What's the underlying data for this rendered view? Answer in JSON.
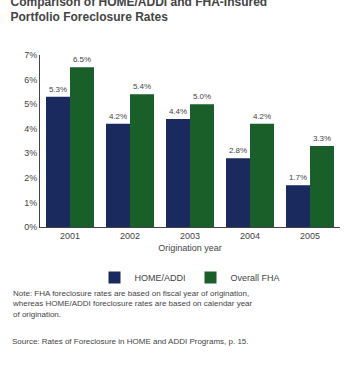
{
  "chart_data": {
    "type": "bar",
    "title": "Comparison of HOME/ADDI and FHA-Insured\nPortfolio Foreclosure Rates",
    "x_label": "Origination year",
    "categories": [
      "2001",
      "2002",
      "2003",
      "2004",
      "2005"
    ],
    "series": [
      {
        "name": "HOME/ADDI",
        "color": "#1a2a5e",
        "values": [
          5.3,
          4.2,
          4.4,
          2.8,
          1.7
        ],
        "value_labels": [
          "5.3%",
          "4.2%",
          "4.4%",
          "2.8%",
          "1.7%"
        ]
      },
      {
        "name": "Overall FHA",
        "color": "#1a5e2a",
        "values": [
          6.5,
          5.4,
          5.0,
          4.2,
          3.3
        ],
        "value_labels": [
          "6.5%",
          "5.4%",
          "5.0%",
          "4.2%",
          "3.3%"
        ]
      }
    ],
    "ylim": [
      0,
      7
    ],
    "yticks": [
      {
        "value": 0,
        "label": "0%"
      },
      {
        "value": 1,
        "label": "1%"
      },
      {
        "value": 2,
        "label": "2%"
      },
      {
        "value": 3,
        "label": "3%"
      },
      {
        "value": 4,
        "label": "4%"
      },
      {
        "value": 5,
        "label": "5%"
      },
      {
        "value": 6,
        "label": "6%"
      },
      {
        "value": 7,
        "label": "7%"
      }
    ],
    "grid": false,
    "legend": "bottom",
    "data_labels": true,
    "annotations": [
      "Note: FHA foreclosure rates are based on fiscal year of origination,\nwhereas HOME/ADDI foreclosure rates are based on calendar year\nof origination.",
      "Source: Rates of Foreclosure in HOME and ADDI Programs, p. 15."
    ]
  }
}
